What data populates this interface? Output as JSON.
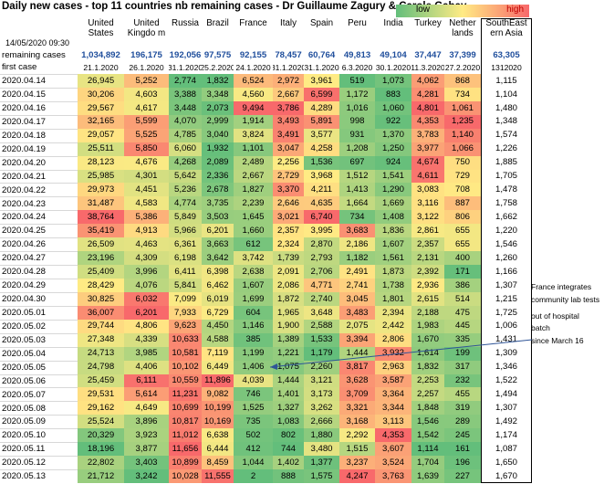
{
  "title": "Daily new cases - top 11 countries nb remaining cases  - Dr Guillaume Zagury & Carole Gabay",
  "legend": {
    "low": "low",
    "high": "high",
    "low_color": "#63be7b",
    "mid_color": "#ffeb84",
    "high_color": "#f8696b"
  },
  "date_stamp": "14/05/2020 09:30",
  "chart_data": {
    "type": "table",
    "columns": [
      "United States",
      "United Kingdo m",
      "Russia",
      "Brazil",
      "France",
      "Italy",
      "Spain",
      "Peru",
      "India",
      "Turkey",
      "Nether lands",
      "SouthEast ern Asia"
    ],
    "remaining_label": "remaining cases",
    "remaining": [
      "1,034,892",
      "196,175",
      "192,056",
      "97,575",
      "92,155",
      "78,457",
      "60,764",
      "49,813",
      "49,104",
      "37,447",
      "37,399",
      "63,305"
    ],
    "first_case_label": "first case",
    "first_case": [
      "21.1.2020",
      "26.1.2020",
      "31.1.2020",
      "25.2.2020",
      "24.1.2020",
      "31.1.2020",
      "31.1.2020",
      "6.3.2020",
      "30.1.2020",
      "11.3.2020",
      "27.2.2020",
      "1312020"
    ],
    "dates": [
      "2020.04.14",
      "2020.04.15",
      "2020.04.16",
      "2020.04.17",
      "2020.04.18",
      "2020.04.19",
      "2020.04.20",
      "2020.04.21",
      "2020.04.22",
      "2020.04.23",
      "2020.04.24",
      "2020.04.25",
      "2020.04.26",
      "2020.04.27",
      "2020.04.28",
      "2020.04.29",
      "2020.04.30",
      "2020.05.01",
      "2020.05.02",
      "2020.05.03",
      "2020.05.04",
      "2020.05.05",
      "2020.05.06",
      "2020.05.07",
      "2020.05.08",
      "2020.05.09",
      "2020.05.10",
      "2020.05.11",
      "2020.05.12",
      "2020.05.13"
    ],
    "rows": [
      [
        26945,
        5252,
        2774,
        1832,
        6524,
        2972,
        3961,
        519,
        1073,
        4062,
        868,
        1115
      ],
      [
        30206,
        4603,
        3388,
        3348,
        4560,
        2667,
        6599,
        1172,
        883,
        4281,
        734,
        1104
      ],
      [
        29567,
        4617,
        3448,
        2073,
        9494,
        3786,
        4289,
        1016,
        1060,
        4801,
        1061,
        1480
      ],
      [
        32165,
        5599,
        4070,
        2999,
        1914,
        3493,
        5891,
        998,
        922,
        4353,
        1235,
        1348
      ],
      [
        29057,
        5525,
        4785,
        3040,
        3824,
        3491,
        3577,
        931,
        1370,
        3783,
        1140,
        1574
      ],
      [
        25511,
        5850,
        6060,
        1932,
        1101,
        3047,
        4258,
        1208,
        1250,
        3977,
        1066,
        1226
      ],
      [
        28123,
        4676,
        4268,
        2089,
        2489,
        2256,
        1536,
        697,
        924,
        4674,
        750,
        1885
      ],
      [
        25985,
        4301,
        5642,
        2336,
        2667,
        2729,
        3968,
        1512,
        1541,
        4611,
        729,
        1705
      ],
      [
        29973,
        4451,
        5236,
        2678,
        1827,
        3370,
        4211,
        1413,
        1290,
        3083,
        708,
        1478
      ],
      [
        31487,
        4583,
        4774,
        3735,
        2239,
        2646,
        4635,
        1664,
        1669,
        3116,
        887,
        1758
      ],
      [
        38764,
        5386,
        5849,
        3503,
        1645,
        3021,
        6740,
        734,
        1408,
        3122,
        806,
        1662
      ],
      [
        35419,
        4913,
        5966,
        6201,
        1660,
        2357,
        3995,
        3683,
        1836,
        2861,
        655,
        1220
      ],
      [
        26509,
        4463,
        6361,
        3663,
        612,
        2324,
        2870,
        2186,
        1607,
        2357,
        655,
        1546
      ],
      [
        23196,
        4309,
        6198,
        3642,
        3742,
        1739,
        2793,
        1182,
        1561,
        2131,
        400,
        1260
      ],
      [
        25409,
        3996,
        6411,
        6398,
        2638,
        2091,
        2706,
        2491,
        1873,
        2392,
        171,
        1166
      ],
      [
        28429,
        4076,
        5841,
        6462,
        1607,
        2086,
        4771,
        2741,
        1738,
        2936,
        386,
        1307
      ],
      [
        30825,
        6032,
        7099,
        6019,
        1699,
        1872,
        2740,
        3045,
        1801,
        2615,
        514,
        1215
      ],
      [
        36007,
        6201,
        7933,
        6729,
        604,
        1965,
        3648,
        3483,
        2394,
        2188,
        475,
        1725
      ],
      [
        29744,
        4806,
        9623,
        4450,
        1146,
        1900,
        2588,
        2075,
        2442,
        1983,
        445,
        1006
      ],
      [
        27348,
        4339,
        10633,
        4588,
        385,
        1389,
        1533,
        3394,
        2806,
        1670,
        335,
        1431
      ],
      [
        24713,
        3985,
        10581,
        7119,
        1199,
        1221,
        1179,
        1444,
        3932,
        1614,
        199,
        1309
      ],
      [
        24798,
        4406,
        10102,
        6449,
        1406,
        1075,
        2260,
        3817,
        2963,
        1832,
        317,
        1346
      ],
      [
        25459,
        6111,
        10559,
        11896,
        4039,
        1444,
        3121,
        3628,
        3587,
        2253,
        232,
        1522
      ],
      [
        29531,
        5614,
        11231,
        9082,
        746,
        1401,
        3173,
        3709,
        3364,
        2257,
        455,
        1494
      ],
      [
        29162,
        4649,
        10699,
        10199,
        1525,
        1327,
        3262,
        3321,
        3344,
        1848,
        319,
        1307
      ],
      [
        25524,
        3896,
        10817,
        10169,
        735,
        1083,
        2666,
        3168,
        3113,
        1546,
        289,
        1492
      ],
      [
        20329,
        3923,
        11012,
        6638,
        502,
        802,
        1880,
        2292,
        4353,
        1542,
        245,
        1174
      ],
      [
        18196,
        3877,
        11656,
        6444,
        412,
        744,
        3480,
        1515,
        3607,
        1114,
        161,
        1087
      ],
      [
        22802,
        3403,
        10899,
        8459,
        1044,
        1402,
        1377,
        3237,
        3524,
        1704,
        196,
        1650
      ],
      [
        21712,
        3242,
        10028,
        11555,
        2,
        888,
        1575,
        4247,
        3763,
        1639,
        227,
        1670
      ]
    ],
    "annotations": [
      "France integrates community lab tests",
      "out of hospital batch",
      "since March 16"
    ]
  }
}
